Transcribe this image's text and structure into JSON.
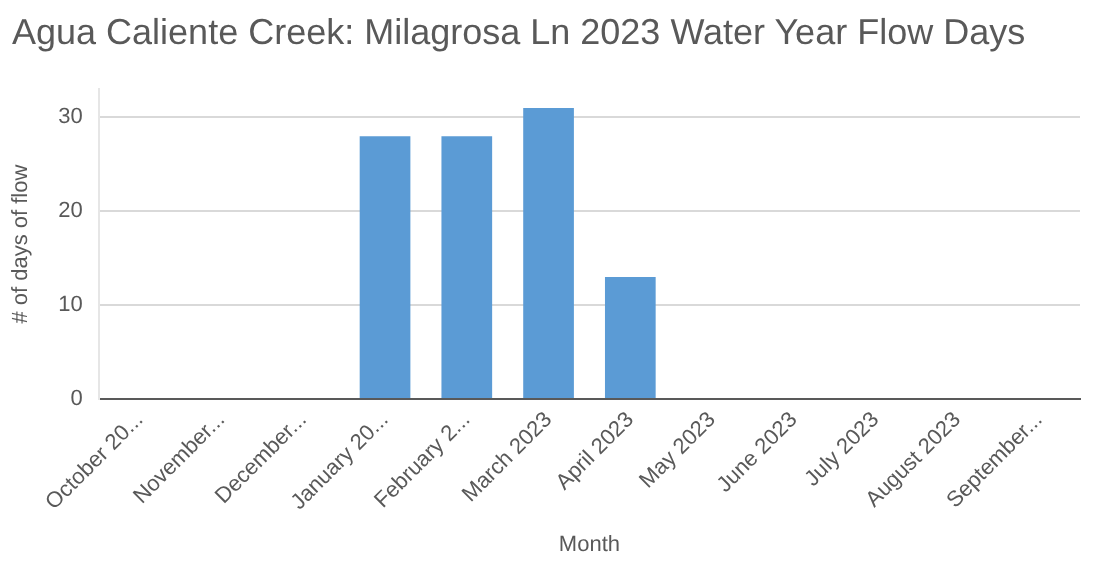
{
  "chart_data": {
    "type": "bar",
    "title": "Agua Caliente Creek: Milagrosa Ln 2023 Water Year Flow Days",
    "xlabel": "Month",
    "ylabel": "# of days of flow",
    "categories": [
      "October 20...",
      "November...",
      "December...",
      "January 20...",
      "February 2...",
      "March 2023",
      "April 2023",
      "May 2023",
      "June 2023",
      "July 2023",
      "August 2023",
      "September..."
    ],
    "values": [
      0,
      0,
      0,
      28,
      28,
      31,
      13,
      0,
      0,
      0,
      0,
      0
    ],
    "color": "#5b9bd5",
    "ylim": [
      0,
      33
    ],
    "yticks": [
      0,
      10,
      20,
      30
    ],
    "grid": "y",
    "legend": false
  }
}
